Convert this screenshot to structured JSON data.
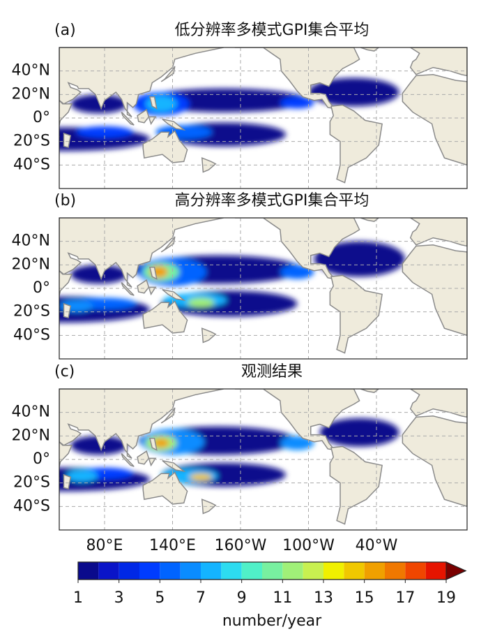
{
  "panels": [
    {
      "label": "(a)",
      "title": "低分辨率多模式GPI集合平均"
    },
    {
      "label": "(b)",
      "title": "高分辨率多模式GPI集合平均"
    },
    {
      "label": "(c)",
      "title": "观测结果"
    }
  ],
  "lat_labels": [
    "40°N",
    "20°N",
    "0°",
    "20°S",
    "40°S"
  ],
  "lon_labels": [
    "80°E",
    "140°E",
    "160°W",
    "100°W",
    "40°W"
  ],
  "colorbar": {
    "label": "number/year",
    "levels": [
      1,
      2,
      3,
      4,
      5,
      6,
      7,
      8,
      9,
      10,
      11,
      12,
      13,
      14,
      15,
      16,
      17,
      18,
      19
    ],
    "ticks": [
      1,
      3,
      5,
      7,
      9,
      11,
      13,
      15,
      17,
      19
    ],
    "colors": [
      "#0a0a8c",
      "#0a14c8",
      "#0028e6",
      "#003cff",
      "#0064ff",
      "#0a8cff",
      "#14b4ff",
      "#2ddcf0",
      "#50f0c8",
      "#78f0a0",
      "#a0f078",
      "#c8f050",
      "#f0f000",
      "#f0c800",
      "#f0a000",
      "#f07800",
      "#f04600",
      "#e61400"
    ]
  }
}
